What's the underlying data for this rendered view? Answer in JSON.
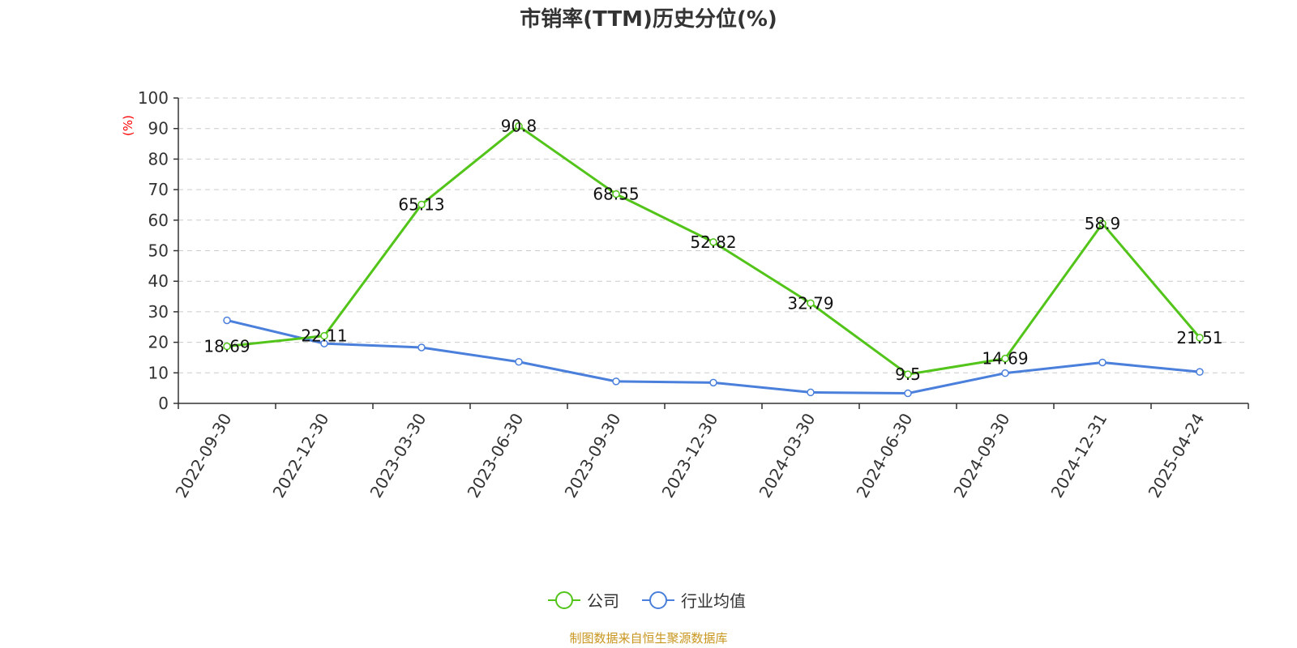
{
  "chart_data": {
    "type": "line",
    "title": "市销率(TTM)历史分位(%)",
    "ylabel": "(%)",
    "ylim": [
      0,
      100
    ],
    "yticks": [
      0,
      10,
      20,
      30,
      40,
      50,
      60,
      70,
      80,
      90,
      100
    ],
    "grid": true,
    "legend_position": "bottom-center",
    "categories": [
      "2022-09-30",
      "2022-12-30",
      "2023-03-30",
      "2023-06-30",
      "2023-09-30",
      "2023-12-30",
      "2024-03-30",
      "2024-06-30",
      "2024-09-30",
      "2024-12-31",
      "2025-04-24"
    ],
    "series": [
      {
        "name": "公司",
        "color": "#52c41a",
        "values": [
          18.69,
          22.11,
          65.13,
          90.8,
          68.55,
          52.82,
          32.79,
          9.5,
          14.69,
          58.9,
          21.51
        ],
        "labels": [
          "18.69",
          "22.11",
          "65.13",
          "90.8",
          "68.55",
          "52.82",
          "32.79",
          "9.5",
          "14.69",
          "58.9",
          "21.51"
        ],
        "show_labels": true
      },
      {
        "name": "行业均值",
        "color": "#4a7fdb",
        "values": [
          27.2,
          19.6,
          18.3,
          13.6,
          7.2,
          6.8,
          3.6,
          3.3,
          9.9,
          13.4,
          10.3
        ],
        "show_labels": false
      }
    ]
  },
  "source_text": "制图数据来自恒生聚源数据库"
}
